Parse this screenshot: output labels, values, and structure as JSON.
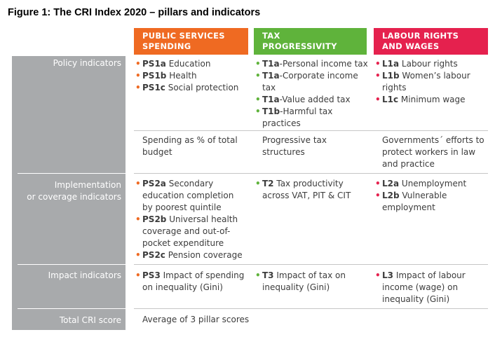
{
  "figure_title": "Figure 1: The CRI Index 2020 – pillars and indicators",
  "columns": [
    {
      "line1": "PUBLIC SERVICES",
      "line2": "SPENDING",
      "color": "#ef6a22",
      "bullet_color": "#ef6a22"
    },
    {
      "line1": "TAX",
      "line2": "PROGRESSIVITY",
      "color": "#5fb33b",
      "bullet_color": "#5fb33b"
    },
    {
      "line1": "LABOUR RIGHTS",
      "line2": "AND WAGES",
      "color": "#e5214e",
      "bullet_color": "#e5214e"
    }
  ],
  "row_labels": {
    "policy": "Policy indicators",
    "implementation_1": "Implementation",
    "implementation_2": "or coverage indicators",
    "impact": "Impact indicators",
    "total": "Total CRI score"
  },
  "policy": {
    "ps": [
      {
        "code": "PS1a",
        "lines": [
          " Education"
        ]
      },
      {
        "code": "PS1b",
        "lines": [
          " Health"
        ]
      },
      {
        "code": "PS1c",
        "lines": [
          " Social protection"
        ]
      }
    ],
    "t": [
      {
        "code": "T1a",
        "lines": [
          "-Personal income tax"
        ]
      },
      {
        "code": "T1a",
        "lines": [
          "-Corporate income",
          "tax"
        ]
      },
      {
        "code": "T1a",
        "lines": [
          "-Value added tax"
        ]
      },
      {
        "code": "T1b",
        "lines": [
          "-Harmful tax",
          "practices"
        ]
      }
    ],
    "l": [
      {
        "code": "L1a",
        "lines": [
          " Labour rights"
        ]
      },
      {
        "code": "L1b",
        "lines": [
          " Women’s labour",
          "rights"
        ]
      },
      {
        "code": "L1c",
        "lines": [
          " Minimum wage"
        ]
      }
    ]
  },
  "summary": {
    "ps": [
      "Spending as % of total",
      "budget"
    ],
    "t": [
      "Progressive tax",
      "structures"
    ],
    "l": [
      "Governments´ efforts to",
      "protect workers in law",
      "and practice"
    ]
  },
  "implementation": {
    "ps": [
      {
        "code": "PS2a",
        "lines": [
          " Secondary",
          "education completion",
          "by poorest quintile"
        ]
      },
      {
        "code": "PS2b",
        "lines": [
          " Universal health",
          "coverage and out-of-",
          "pocket expenditure"
        ]
      },
      {
        "code": "PS2c",
        "lines": [
          " Pension coverage"
        ]
      }
    ],
    "t": [
      {
        "code": "T2",
        "lines": [
          " Tax productivity",
          "across VAT, PIT & CIT"
        ]
      }
    ],
    "l": [
      {
        "code": "L2a",
        "lines": [
          " Unemployment"
        ]
      },
      {
        "code": "L2b",
        "lines": [
          " Vulnerable",
          "employment"
        ]
      }
    ]
  },
  "impact": {
    "ps": [
      {
        "code": "PS3",
        "lines": [
          " Impact of spending",
          "on inequality (Gini)"
        ]
      }
    ],
    "t": [
      {
        "code": "T3",
        "lines": [
          " Impact of tax on",
          "inequality (Gini)"
        ]
      }
    ],
    "l": [
      {
        "code": "L3",
        "lines": [
          " Impact of labour",
          "income (wage) on",
          "inequality (Gini)"
        ]
      }
    ]
  },
  "total": {
    "ps": "Average of 3 pillar scores"
  },
  "bullet_glyph": "•"
}
